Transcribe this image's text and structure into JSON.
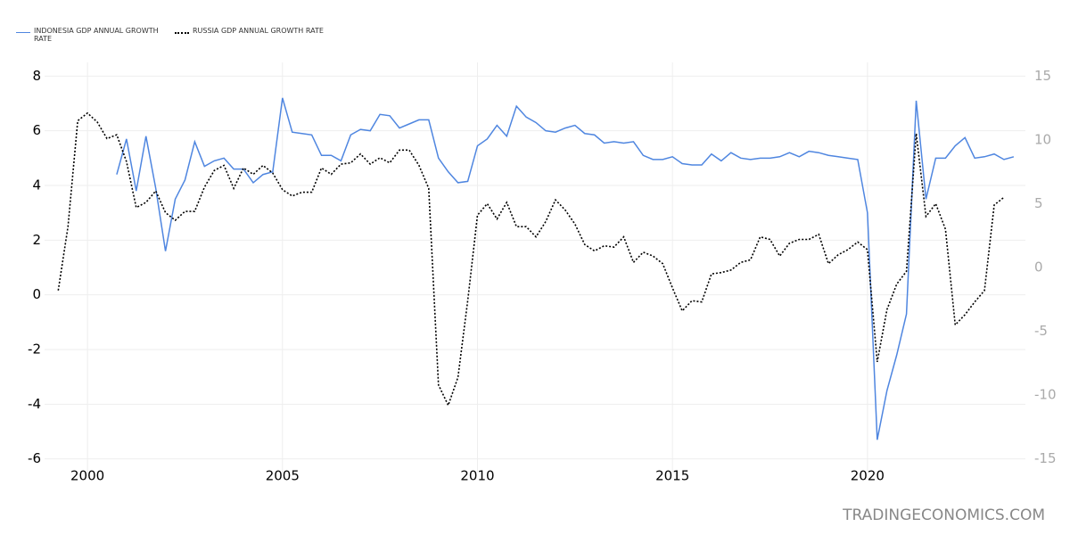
{
  "chart_data": {
    "type": "line",
    "watermark": "TRADINGECONOMICS.COM",
    "xlim": [
      1998.9,
      2024.05
    ],
    "xticks": [
      2000,
      2005,
      2010,
      2015,
      2020
    ],
    "ylim": [
      -6.5,
      8.5
    ],
    "yticks": [
      -6,
      -4,
      -2,
      0,
      2,
      4,
      6,
      8
    ],
    "y2lim": [
      -16.07,
      16.07
    ],
    "y2ticks": [
      -15,
      -10,
      -5,
      0,
      5,
      10,
      15
    ],
    "grid": true,
    "legend": "top-left",
    "series": [
      {
        "name": "INDONESIA GDP ANNUAL GROWTH RATE",
        "color": "#4f86e0",
        "style": "solid",
        "x": [
          2000.75,
          2001,
          2001.25,
          2001.5,
          2001.75,
          2002,
          2002.25,
          2002.5,
          2002.75,
          2003,
          2003.25,
          2003.5,
          2003.75,
          2004,
          2004.25,
          2004.5,
          2004.75,
          2005,
          2005.25,
          2005.5,
          2005.75,
          2006,
          2006.25,
          2006.5,
          2006.75,
          2007,
          2007.25,
          2007.5,
          2007.75,
          2008,
          2008.25,
          2008.5,
          2008.75,
          2009,
          2009.25,
          2009.5,
          2009.75,
          2010,
          2010.25,
          2010.5,
          2010.75,
          2011,
          2011.25,
          2011.5,
          2011.75,
          2012,
          2012.25,
          2012.5,
          2012.75,
          2013,
          2013.25,
          2013.5,
          2013.75,
          2014,
          2014.25,
          2014.5,
          2014.75,
          2015,
          2015.25,
          2015.5,
          2015.75,
          2016,
          2016.25,
          2016.5,
          2016.75,
          2017,
          2017.25,
          2017.5,
          2017.75,
          2018,
          2018.25,
          2018.5,
          2018.75,
          2019,
          2019.25,
          2019.5,
          2019.75,
          2020,
          2020.25,
          2020.5,
          2020.75,
          2021,
          2021.25,
          2021.5,
          2021.75,
          2022,
          2022.25,
          2022.5,
          2022.75,
          2023,
          2023.25,
          2023.5,
          2023.75
        ],
        "values": [
          4.4,
          5.7,
          3.8,
          5.8,
          3.9,
          1.6,
          3.5,
          4.2,
          5.6,
          4.7,
          4.9,
          5.0,
          4.6,
          4.6,
          4.1,
          4.4,
          4.5,
          7.2,
          5.95,
          5.9,
          5.85,
          5.1,
          5.1,
          4.9,
          5.85,
          6.05,
          6.0,
          6.6,
          6.55,
          6.1,
          6.25,
          6.4,
          6.4,
          5.0,
          4.5,
          4.1,
          4.15,
          5.45,
          5.7,
          6.2,
          5.8,
          6.9,
          6.5,
          6.3,
          6.0,
          5.95,
          6.1,
          6.2,
          5.9,
          5.85,
          5.55,
          5.6,
          5.55,
          5.6,
          5.1,
          4.95,
          4.95,
          5.05,
          4.8,
          4.75,
          4.75,
          5.15,
          4.9,
          5.2,
          5.0,
          4.95,
          5.0,
          5.0,
          5.05,
          5.2,
          5.05,
          5.25,
          5.2,
          5.1,
          5.05,
          5.0,
          4.95,
          3.0,
          -5.3,
          -3.5,
          -2.2,
          -0.7,
          7.1,
          3.5,
          5.0,
          5.0,
          5.45,
          5.75,
          5.0,
          5.05,
          5.15,
          4.95,
          5.05
        ]
      },
      {
        "name": "RUSSIA GDP ANNUAL GROWTH RATE",
        "color": "#000000",
        "style": "dotted",
        "axis": "y2",
        "x": [
          1999.25,
          1999.5,
          1999.75,
          2000,
          2000.25,
          2000.5,
          2000.75,
          2001,
          2001.25,
          2001.5,
          2001.75,
          2002,
          2002.25,
          2002.5,
          2002.75,
          2003,
          2003.25,
          2003.5,
          2003.75,
          2004,
          2004.25,
          2004.5,
          2004.75,
          2005,
          2005.25,
          2005.5,
          2005.75,
          2006,
          2006.25,
          2006.5,
          2006.75,
          2007,
          2007.25,
          2007.5,
          2007.75,
          2008,
          2008.25,
          2008.5,
          2008.75,
          2009,
          2009.25,
          2009.5,
          2009.75,
          2010,
          2010.25,
          2010.5,
          2010.75,
          2011,
          2011.25,
          2011.5,
          2011.75,
          2012,
          2012.25,
          2012.5,
          2012.75,
          2013,
          2013.25,
          2013.5,
          2013.75,
          2014,
          2014.25,
          2014.5,
          2014.75,
          2015,
          2015.25,
          2015.5,
          2015.75,
          2016,
          2016.25,
          2016.5,
          2016.75,
          2017,
          2017.25,
          2017.5,
          2017.75,
          2018,
          2018.25,
          2018.5,
          2018.75,
          2019,
          2019.25,
          2019.5,
          2019.75,
          2020,
          2020.25,
          2020.5,
          2020.75,
          2021,
          2021.25,
          2021.5,
          2021.75,
          2022,
          2022.25,
          2022.5,
          2022.75,
          2023,
          2023.25,
          2023.5
        ],
        "values": [
          -1.8,
          3.2,
          11.5,
          12.1,
          11.4,
          10.1,
          10.4,
          8.3,
          4.7,
          5.1,
          6.0,
          4.3,
          3.7,
          4.4,
          4.4,
          6.3,
          7.6,
          8.0,
          6.2,
          7.8,
          7.3,
          8.0,
          7.4,
          6.1,
          5.6,
          5.9,
          5.9,
          7.8,
          7.3,
          8.1,
          8.2,
          8.9,
          8.1,
          8.6,
          8.2,
          9.2,
          9.2,
          8.0,
          6.2,
          -9.2,
          -10.8,
          -8.6,
          -2.6,
          4.1,
          5.0,
          3.8,
          5.1,
          3.2,
          3.2,
          2.4,
          3.6,
          5.3,
          4.5,
          3.4,
          1.8,
          1.3,
          1.7,
          1.6,
          2.4,
          0.4,
          1.2,
          0.9,
          0.3,
          -1.6,
          -3.4,
          -2.6,
          -2.7,
          -0.5,
          -0.4,
          -0.2,
          0.4,
          0.6,
          2.4,
          2.2,
          0.9,
          1.9,
          2.2,
          2.2,
          2.6,
          0.3,
          1.0,
          1.4,
          2.0,
          1.4,
          -7.4,
          -3.3,
          -1.3,
          -0.3,
          10.5,
          4.0,
          5.0,
          3.0,
          -4.5,
          -3.7,
          -2.7,
          -1.8,
          4.9,
          5.5
        ]
      }
    ]
  }
}
